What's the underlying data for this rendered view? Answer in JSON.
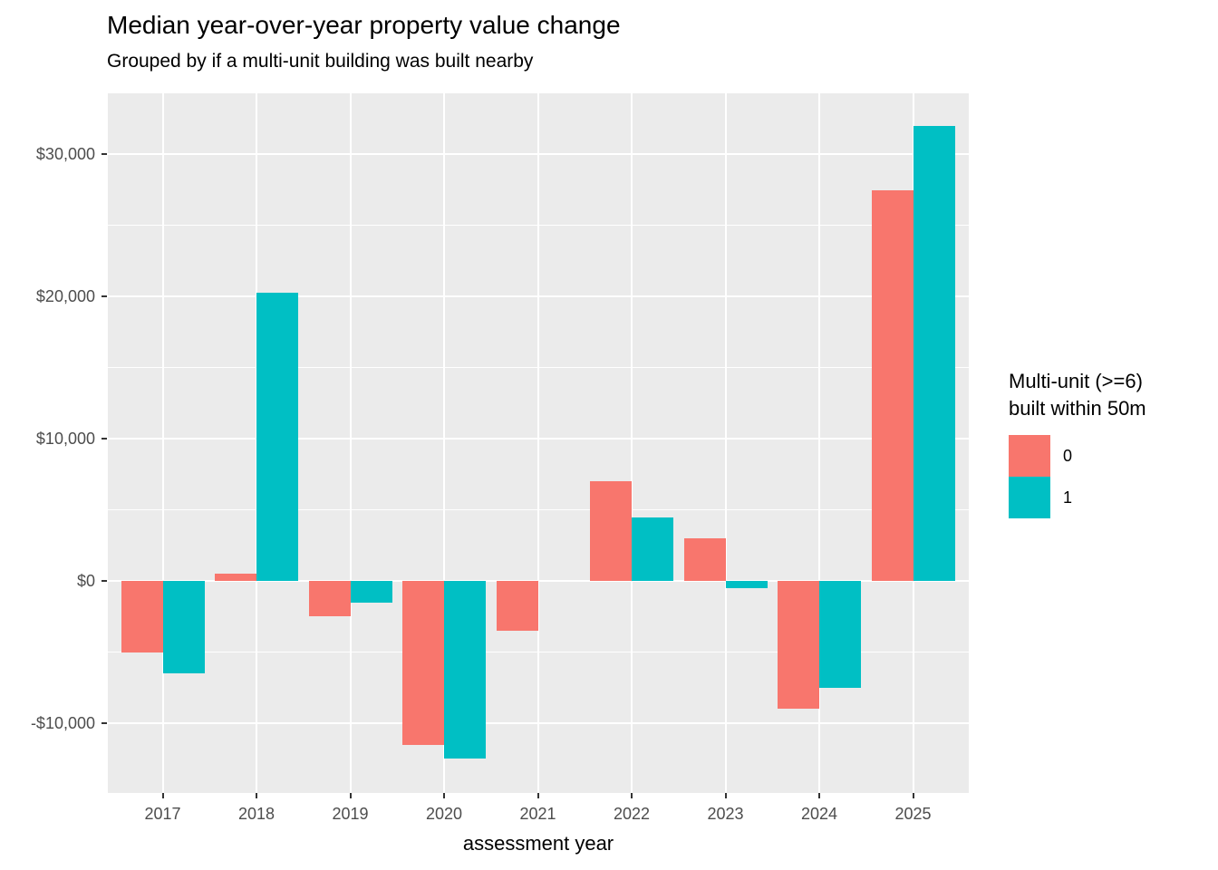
{
  "title": "Median year-over-year property value change",
  "subtitle": "Grouped by if a multi-unit building was built nearby",
  "chart_data": {
    "type": "bar",
    "categories": [
      "2017",
      "2018",
      "2019",
      "2020",
      "2021",
      "2022",
      "2023",
      "2024",
      "2025"
    ],
    "series": [
      {
        "name": "0",
        "color": "#F8766D",
        "values": [
          -5000,
          500,
          -2500,
          -11500,
          -3500,
          7000,
          3000,
          -9000,
          27500
        ]
      },
      {
        "name": "1",
        "color": "#00BFC4",
        "values": [
          -6500,
          20300,
          -1500,
          -12500,
          null,
          4500,
          -500,
          -7500,
          32000
        ]
      }
    ],
    "title": "Median year-over-year property value change",
    "subtitle": "Grouped by if a multi-unit building was built nearby",
    "xlabel": "assessment year",
    "ylabel": "",
    "ylim": [
      -14900,
      34300
    ],
    "y_ticks": [
      {
        "label": "$30,000",
        "value": 30000
      },
      {
        "label": "$20,000",
        "value": 20000
      },
      {
        "label": "$10,000",
        "value": 10000
      },
      {
        "label": "$0",
        "value": 0
      },
      {
        "label": "-$10,000",
        "value": -10000
      }
    ],
    "y_minor": [
      25000,
      15000,
      5000,
      -5000
    ],
    "grid": true,
    "legend_position": "right",
    "legend": {
      "title_lines": [
        "Multi-unit (>=6)",
        "built within 50m"
      ],
      "items": [
        {
          "label": "0",
          "color": "#F8766D"
        },
        {
          "label": "1",
          "color": "#00BFC4"
        }
      ]
    },
    "colors": {
      "panel_background": "#EBEBEB",
      "gridline": "#FFFFFF",
      "axis_text": "#4D4D4D",
      "tick_mark": "#333333",
      "title_text": "#000000"
    }
  }
}
